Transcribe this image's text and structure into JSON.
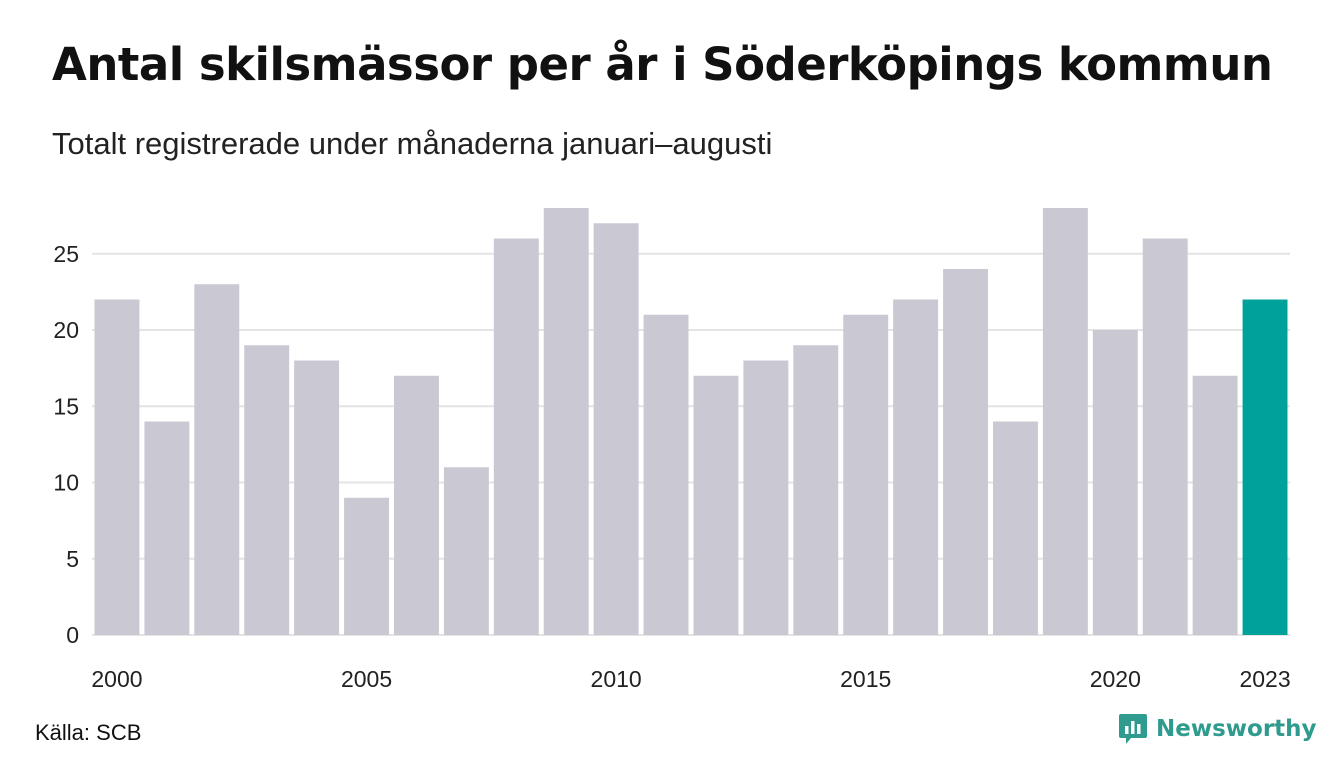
{
  "title": "Antal skilsmässor per år i Söderköpings kommun",
  "subtitle": "Totalt registrerade under månaderna januari–augusti",
  "source": "Källa: SCB",
  "brand": {
    "name": "Newsworthy",
    "icon": "chart-bubble-icon",
    "color": "#2e9b8e"
  },
  "chart_data": {
    "type": "bar",
    "categories": [
      "2000",
      "2001",
      "2002",
      "2003",
      "2004",
      "2005",
      "2006",
      "2007",
      "2008",
      "2009",
      "2010",
      "2011",
      "2012",
      "2013",
      "2014",
      "2015",
      "2016",
      "2017",
      "2018",
      "2019",
      "2020",
      "2021",
      "2022",
      "2023"
    ],
    "values": [
      22,
      14,
      23,
      19,
      18,
      9,
      17,
      11,
      26,
      28,
      27,
      21,
      17,
      18,
      19,
      21,
      22,
      24,
      14,
      28,
      20,
      26,
      17,
      22
    ],
    "ylim": [
      0,
      28
    ],
    "yticks": [
      "0",
      "5",
      "10",
      "15",
      "20",
      "25"
    ],
    "xticks_shown": [
      "2000",
      "2005",
      "2010",
      "2015",
      "2020",
      "2023"
    ],
    "grid": true,
    "colors": {
      "bar": "#c9c8d3",
      "highlight": "#00a19a",
      "grid": "#e4e4e4"
    },
    "highlight_category": "2023"
  }
}
